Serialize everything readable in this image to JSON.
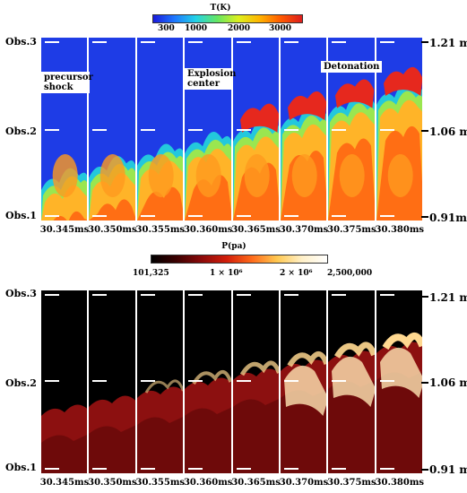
{
  "figure": {
    "temperature": {
      "colorbar_title": "T(K)",
      "colorbar_ticks": [
        "300",
        "1000",
        "2000",
        "3000"
      ],
      "observers": [
        "Obs.3",
        "Obs.2",
        "Obs.1"
      ],
      "heights": [
        "1.21 m",
        "1.06 m",
        "0.91m"
      ],
      "annotations": {
        "precursor": "precursor shock",
        "explosion": "Explosion center",
        "detonation": "Detonation"
      }
    },
    "pressure": {
      "colorbar_title": "P(pa)",
      "colorbar_ticks": [
        "101,325",
        "1 × 10⁶",
        "2 × 10⁶",
        "2,500,000"
      ],
      "observers": [
        "Obs.3",
        "Obs.2",
        "Obs.1"
      ],
      "heights": [
        "1.21 m",
        "1.06 m",
        "0.91 m"
      ]
    },
    "times": [
      "30.345ms",
      "30.350ms",
      "30.355ms",
      "30.360ms",
      "30.365ms",
      "30.370ms",
      "30.375ms",
      "30.380ms"
    ],
    "colors": {
      "temperature_gradient": [
        "#1a1adc",
        "#1e78ff",
        "#23d2e6",
        "#64e664",
        "#dcf01e",
        "#ffb400",
        "#ff5a00",
        "#dc1e1e"
      ],
      "pressure_gradient": [
        "#000000",
        "#3c0000",
        "#8c0a0a",
        "#d21e0a",
        "#ff6a1a",
        "#ffc850",
        "#fff0c8",
        "#ffffff"
      ]
    }
  }
}
